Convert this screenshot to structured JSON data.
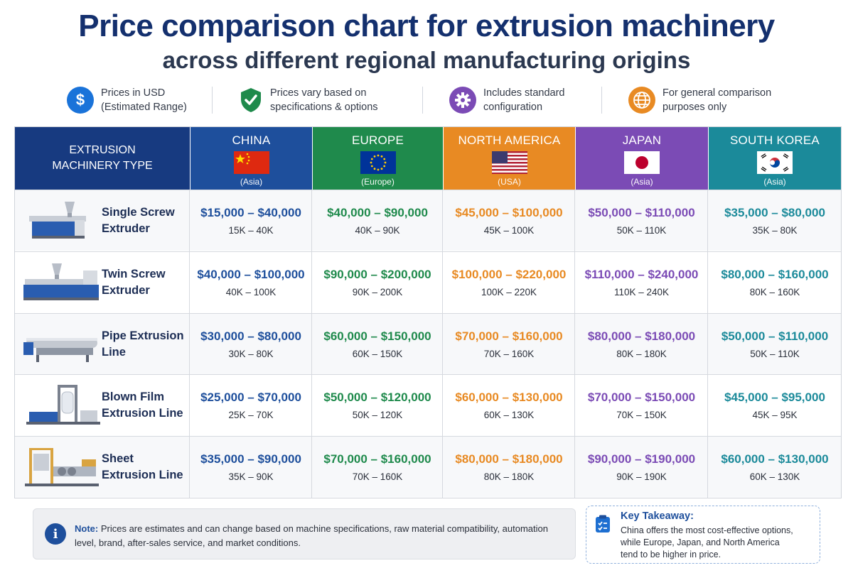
{
  "title": "Price comparison chart for extrusion machinery",
  "subtitle": "across different regional manufacturing origins",
  "info": [
    {
      "icon": "dollar-icon",
      "text": "Prices in USD\n(Estimated Range)",
      "color": "#1a73d9"
    },
    {
      "icon": "shield-check-icon",
      "text": "Prices vary based on\nspecifications & options",
      "color": "#1f8a4c"
    },
    {
      "icon": "gear-icon",
      "text": "Includes standard\nconfiguration",
      "color": "#7b4bb5"
    },
    {
      "icon": "globe-icon",
      "text": "For general comparison\npurposes only",
      "color": "#e88a23"
    }
  ],
  "chart_data": {
    "type": "table",
    "row_header": "EXTRUSION MACHINERY TYPE",
    "columns": [
      {
        "name": "CHINA",
        "sub": "(Asia)",
        "color": "#1e4f9c",
        "text_color": "#1e4f9c",
        "flag": "china-flag"
      },
      {
        "name": "EUROPE",
        "sub": "(Europe)",
        "color": "#1f8a4c",
        "text_color": "#1f8a4c",
        "flag": "eu-flag"
      },
      {
        "name": "NORTH AMERICA",
        "sub": "(USA)",
        "color": "#e88a23",
        "text_color": "#e88a23",
        "flag": "usa-flag"
      },
      {
        "name": "JAPAN",
        "sub": "(Asia)",
        "color": "#7b4bb5",
        "text_color": "#7b4bb5",
        "flag": "japan-flag"
      },
      {
        "name": "SOUTH KOREA",
        "sub": "(Asia)",
        "color": "#1b8a9a",
        "text_color": "#1b8a9a",
        "flag": "korea-flag"
      }
    ],
    "rows": [
      {
        "type": "Single Screw Extruder",
        "icon": "single-screw-extruder-icon",
        "prices": [
          {
            "range": "$15,000 – $40,000",
            "short": "15K – 40K",
            "min": 15000,
            "max": 40000
          },
          {
            "range": "$40,000 – $90,000",
            "short": "40K – 90K",
            "min": 40000,
            "max": 90000
          },
          {
            "range": "$45,000 – $100,000",
            "short": "45K – 100K",
            "min": 45000,
            "max": 100000
          },
          {
            "range": "$50,000 – $110,000",
            "short": "50K – 110K",
            "min": 50000,
            "max": 110000
          },
          {
            "range": "$35,000 – $80,000",
            "short": "35K – 80K",
            "min": 35000,
            "max": 80000
          }
        ]
      },
      {
        "type": "Twin Screw Extruder",
        "icon": "twin-screw-extruder-icon",
        "prices": [
          {
            "range": "$40,000 – $100,000",
            "short": "40K – 100K",
            "min": 40000,
            "max": 100000
          },
          {
            "range": "$90,000 – $200,000",
            "short": "90K – 200K",
            "min": 90000,
            "max": 200000
          },
          {
            "range": "$100,000 – $220,000",
            "short": "100K – 220K",
            "min": 100000,
            "max": 220000
          },
          {
            "range": "$110,000 – $240,000",
            "short": "110K – 240K",
            "min": 110000,
            "max": 240000
          },
          {
            "range": "$80,000 – $160,000",
            "short": "80K – 160K",
            "min": 80000,
            "max": 160000
          }
        ]
      },
      {
        "type": "Pipe Extrusion Line",
        "icon": "pipe-extrusion-line-icon",
        "prices": [
          {
            "range": "$30,000 – $80,000",
            "short": "30K – 80K",
            "min": 30000,
            "max": 80000
          },
          {
            "range": "$60,000 – $150,000",
            "short": "60K – 150K",
            "min": 60000,
            "max": 150000
          },
          {
            "range": "$70,000 – $160,000",
            "short": "70K – 160K",
            "min": 70000,
            "max": 160000
          },
          {
            "range": "$80,000 – $180,000",
            "short": "80K – 180K",
            "min": 80000,
            "max": 180000
          },
          {
            "range": "$50,000 – $110,000",
            "short": "50K – 110K",
            "min": 50000,
            "max": 110000
          }
        ]
      },
      {
        "type": "Blown Film Extrusion Line",
        "icon": "blown-film-line-icon",
        "prices": [
          {
            "range": "$25,000 – $70,000",
            "short": "25K – 70K",
            "min": 25000,
            "max": 70000
          },
          {
            "range": "$50,000 – $120,000",
            "short": "50K – 120K",
            "min": 50000,
            "max": 120000
          },
          {
            "range": "$60,000 – $130,000",
            "short": "60K – 130K",
            "min": 60000,
            "max": 130000
          },
          {
            "range": "$70,000 – $150,000",
            "short": "70K – 150K",
            "min": 70000,
            "max": 150000
          },
          {
            "range": "$45,000 – $95,000",
            "short": "45K – 95K",
            "min": 45000,
            "max": 95000
          }
        ]
      },
      {
        "type": "Sheet Extrusion Line",
        "icon": "sheet-extrusion-line-icon",
        "prices": [
          {
            "range": "$35,000 – $90,000",
            "short": "35K – 90K",
            "min": 35000,
            "max": 90000
          },
          {
            "range": "$70,000 – $160,000",
            "short": "70K – 160K",
            "min": 70000,
            "max": 160000
          },
          {
            "range": "$80,000 – $180,000",
            "short": "80K – 180K",
            "min": 80000,
            "max": 180000
          },
          {
            "range": "$90,000 – $190,000",
            "short": "90K – 190K",
            "min": 90000,
            "max": 190000
          },
          {
            "range": "$60,000 – $130,000",
            "short": "60K – 130K",
            "min": 60000,
            "max": 130000
          }
        ]
      }
    ]
  },
  "note": {
    "label": "Note:",
    "text": "Prices are estimates and can change based on machine specifications, raw material compatibility, automation level, brand, after-sales service, and market conditions."
  },
  "takeaway": {
    "title": "Key Takeaway:",
    "text": "China offers the most cost-effective options,\nwhile Europe, Japan, and North America\ntend to be higher in price."
  }
}
